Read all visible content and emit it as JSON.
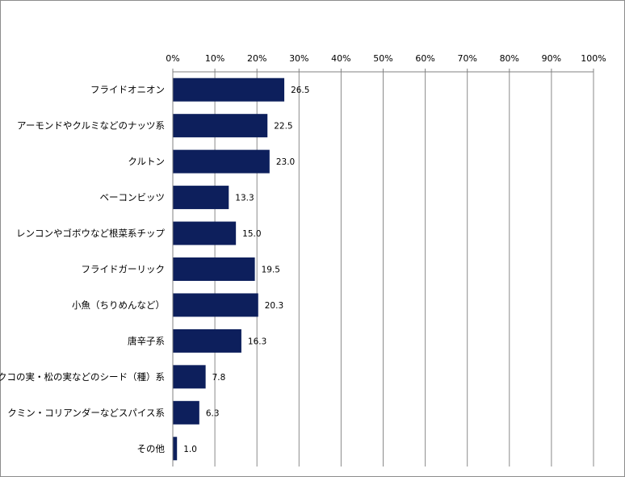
{
  "chart_data": {
    "type": "bar",
    "orientation": "horizontal",
    "categories": [
      "フライドオニオン",
      "アーモンドやクルミなどのナッツ系",
      "クルトン",
      "ベーコンビッツ",
      "レンコンやゴボウなど根菜系チップ",
      "フライドガーリック",
      "小魚（ちりめんなど）",
      "唐辛子系",
      "クコの実・松の実などのシード（種）系",
      "クミン・コリアンダーなどスパイス系",
      "その他"
    ],
    "values": [
      26.5,
      22.5,
      23.0,
      13.3,
      15.0,
      19.5,
      20.3,
      16.3,
      7.8,
      6.3,
      1.0
    ],
    "data_labels": [
      "26.5",
      "22.5",
      "23.0",
      "13.3",
      "15.0",
      "19.5",
      "20.3",
      "16.3",
      "7.8",
      "6.3",
      "1.0"
    ],
    "x_ticks": [
      "0%",
      "10%",
      "20%",
      "30%",
      "40%",
      "50%",
      "60%",
      "70%",
      "80%",
      "90%",
      "100%"
    ],
    "xlim": [
      0,
      100
    ],
    "x_axis_position": "top",
    "grid": true,
    "bar_color": "#0d1f5c"
  }
}
